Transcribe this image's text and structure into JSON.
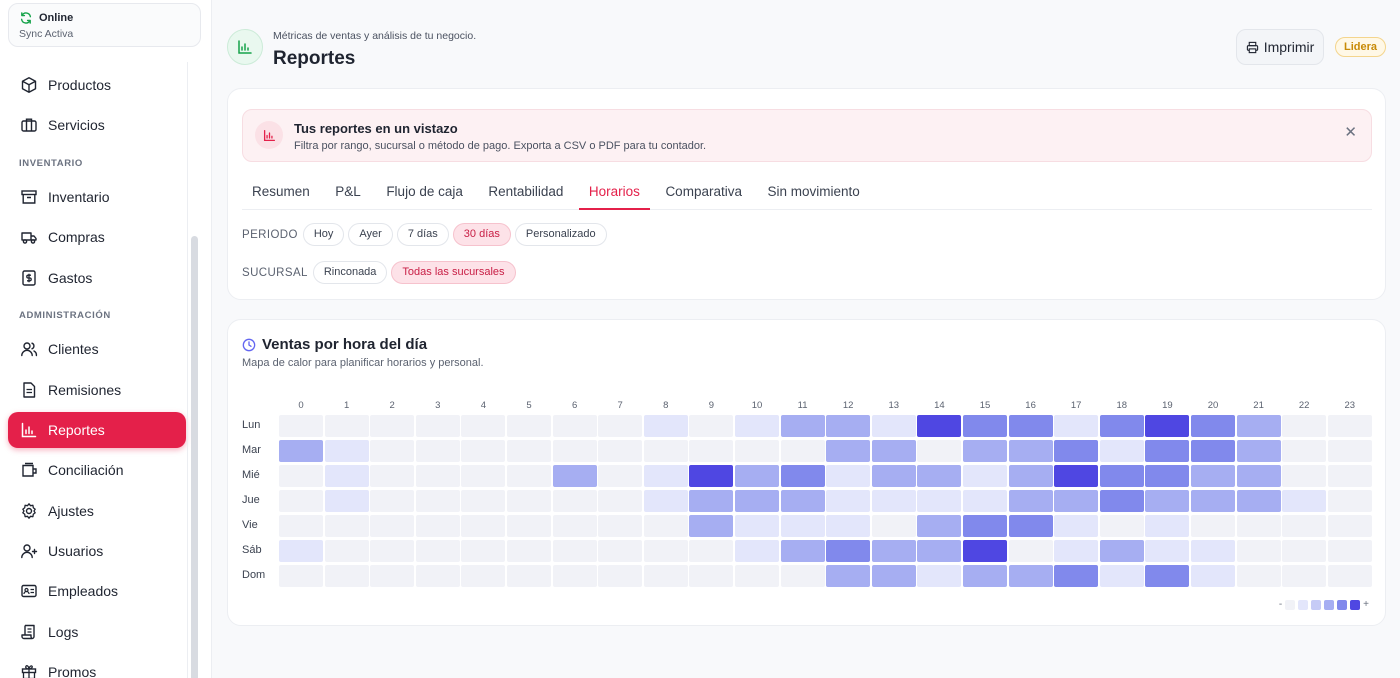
{
  "sync": {
    "status": "Online",
    "detail": "Sync Activa"
  },
  "sidebar": {
    "items": [
      {
        "type": "item",
        "label": "Productos",
        "icon": "box-icon",
        "key": "productos"
      },
      {
        "type": "item",
        "label": "Servicios",
        "icon": "briefcase-icon",
        "key": "servicios"
      },
      {
        "type": "section",
        "label": "INVENTARIO"
      },
      {
        "type": "item",
        "label": "Inventario",
        "icon": "archive-icon",
        "key": "inventario"
      },
      {
        "type": "item",
        "label": "Compras",
        "icon": "truck-icon",
        "key": "compras"
      },
      {
        "type": "item",
        "label": "Gastos",
        "icon": "dollar-icon",
        "key": "gastos"
      },
      {
        "type": "section",
        "label": "ADMINISTRACIÓN"
      },
      {
        "type": "item",
        "label": "Clientes",
        "icon": "users-icon",
        "key": "clientes"
      },
      {
        "type": "item",
        "label": "Remisiones",
        "icon": "file-icon",
        "key": "remisiones"
      },
      {
        "type": "item",
        "label": "Reportes",
        "icon": "chart-icon",
        "key": "reportes",
        "active": true
      },
      {
        "type": "item",
        "label": "Conciliación",
        "icon": "wallet-icon",
        "key": "conciliacion"
      },
      {
        "type": "item",
        "label": "Ajustes",
        "icon": "gear-icon",
        "key": "ajustes"
      },
      {
        "type": "item",
        "label": "Usuarios",
        "icon": "user-icon",
        "key": "usuarios"
      },
      {
        "type": "item",
        "label": "Empleados",
        "icon": "id-card-icon",
        "key": "empleados"
      },
      {
        "type": "item",
        "label": "Logs",
        "icon": "scroll-icon",
        "key": "logs"
      },
      {
        "type": "item",
        "label": "Promos",
        "icon": "gift-icon",
        "key": "promos"
      }
    ]
  },
  "header": {
    "subtitle": "Métricas de ventas y análisis de tu negocio.",
    "title": "Reportes",
    "print_label": "Imprimir",
    "plan_badge": "Lidera"
  },
  "banner": {
    "title": "Tus reportes en un vistazo",
    "text": "Filtra por rango, sucursal o método de pago. Exporta a CSV o PDF para tu contador."
  },
  "tabs": [
    "Resumen",
    "P&L",
    "Flujo de caja",
    "Rentabilidad",
    "Horarios",
    "Comparativa",
    "Sin movimiento"
  ],
  "active_tab": 4,
  "filters": {
    "periodo": {
      "label": "PERIODO",
      "options": [
        "Hoy",
        "Ayer",
        "7 días",
        "30 días",
        "Personalizado"
      ],
      "active": 3
    },
    "sucursal": {
      "label": "SUCURSAL",
      "options": [
        "Rinconada",
        "Todas las sucursales"
      ],
      "active": 1
    }
  },
  "heatmap": {
    "title": "Ventas por hora del día",
    "subtitle": "Mapa de calor para planificar horarios y personal.",
    "legend_low": "-",
    "legend_high": "+",
    "colors": [
      "#f1f2f7",
      "#e3e6fb",
      "#c6cbf6",
      "#a6aef2",
      "#8189ec",
      "#4f47e2"
    ]
  },
  "chart_data": {
    "type": "heatmap",
    "title": "Ventas por hora del día",
    "x": [
      "0",
      "1",
      "2",
      "3",
      "4",
      "5",
      "6",
      "7",
      "8",
      "9",
      "10",
      "11",
      "12",
      "13",
      "14",
      "15",
      "16",
      "17",
      "18",
      "19",
      "20",
      "21",
      "22",
      "23"
    ],
    "y": [
      "Lun",
      "Mar",
      "Mié",
      "Jue",
      "Vie",
      "Sáb",
      "Dom"
    ],
    "scale": [
      0,
      5
    ],
    "values": [
      [
        0,
        0,
        0,
        0,
        0,
        0,
        0,
        0,
        1,
        0,
        1,
        3,
        3,
        1,
        5,
        4,
        4,
        1,
        4,
        5,
        4,
        3,
        0,
        0
      ],
      [
        3,
        1,
        0,
        0,
        0,
        0,
        0,
        0,
        0,
        0,
        0,
        0,
        3,
        3,
        0,
        3,
        3,
        4,
        1,
        4,
        4,
        3,
        0,
        0
      ],
      [
        0,
        1,
        0,
        0,
        0,
        0,
        3,
        0,
        1,
        5,
        3,
        4,
        1,
        3,
        3,
        1,
        3,
        5,
        4,
        4,
        3,
        3,
        0,
        0
      ],
      [
        0,
        1,
        0,
        0,
        0,
        0,
        0,
        0,
        1,
        3,
        3,
        3,
        1,
        1,
        1,
        1,
        3,
        3,
        4,
        3,
        3,
        3,
        1,
        0
      ],
      [
        0,
        0,
        0,
        0,
        0,
        0,
        0,
        0,
        0,
        3,
        1,
        1,
        1,
        0,
        3,
        4,
        4,
        1,
        0,
        1,
        0,
        0,
        0,
        0
      ],
      [
        1,
        0,
        0,
        0,
        0,
        0,
        0,
        0,
        0,
        0,
        1,
        3,
        4,
        3,
        3,
        5,
        0,
        1,
        3,
        1,
        1,
        0,
        0,
        0
      ],
      [
        0,
        0,
        0,
        0,
        0,
        0,
        0,
        0,
        0,
        0,
        0,
        0,
        3,
        3,
        1,
        3,
        3,
        4,
        1,
        4,
        1,
        0,
        0,
        0
      ]
    ]
  }
}
